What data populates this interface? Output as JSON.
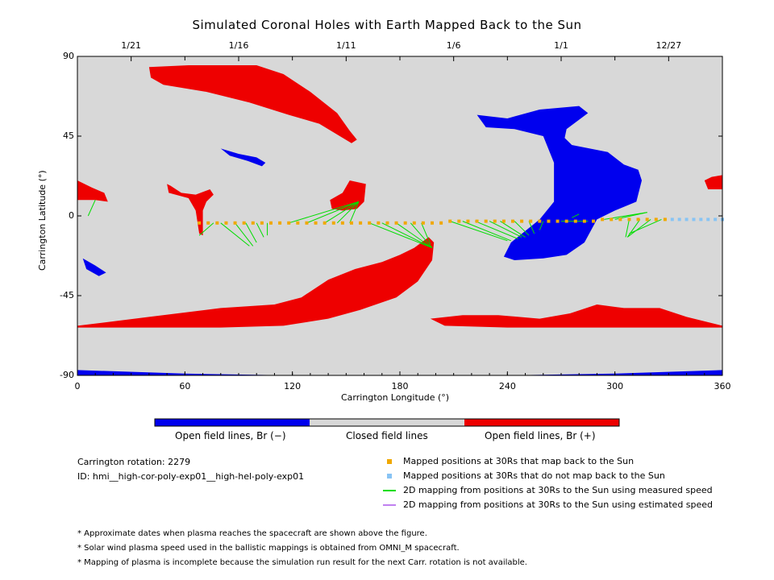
{
  "title": "Simulated Coronal Holes with Earth Mapped Back to the Sun",
  "info": {
    "rotation": "Carrington rotation: 2279",
    "id": "ID: hmi__high-cor-poly-exp01__high-hel-poly-exp01"
  },
  "colorbar": {
    "labels": [
      "Open field lines, Br (−)",
      "Closed field lines",
      "Open field lines, Br (+)"
    ],
    "colors": [
      "#0000ee",
      "#d8d8d8",
      "#ee0000"
    ]
  },
  "legend": [
    {
      "label": "Mapped positions at 30Rs that map back to the Sun",
      "marker": "square",
      "color": "#f0a800"
    },
    {
      "label": "Mapped positions at 30Rs that do not map back to the Sun",
      "marker": "square",
      "color": "#88c4f4"
    },
    {
      "label": "2D mapping from positions at 30Rs to the Sun using measured speed",
      "marker": "line",
      "color": "#00dd00"
    },
    {
      "label": "2D mapping from positions at 30Rs to the Sun using estimated speed",
      "marker": "line",
      "color": "#c080f0"
    }
  ],
  "notes": [
    "* Approximate dates when plasma reaches the spacecraft are shown above the figure.",
    "* Solar wind plasma speed used in the ballistic mappings is obtained from OMNI_M spacecraft.",
    "* Mapping of plasma is incomplete because the simulation run result for the next Carr. rotation is not available."
  ],
  "chart_data": {
    "type": "scatter",
    "title": "Simulated Coronal Holes with Earth Mapped Back to the Sun",
    "xlabel": "Carrington Longitude (°)",
    "ylabel": "Carrington Latitude (°)",
    "xlim": [
      0,
      360
    ],
    "ylim": [
      -90,
      90
    ],
    "xticks": [
      0,
      60,
      120,
      180,
      240,
      300,
      360
    ],
    "yticks": [
      -90,
      -45,
      0,
      45,
      90
    ],
    "top_axis_dates": [
      {
        "label": "1/21",
        "lon": 30
      },
      {
        "label": "1/16",
        "lon": 90
      },
      {
        "label": "1/11",
        "lon": 150
      },
      {
        "label": "1/6",
        "lon": 210
      },
      {
        "label": "1/1",
        "lon": 270
      },
      {
        "label": "12/27",
        "lon": 330
      }
    ],
    "background": "#d8d8d8",
    "regions": [
      {
        "name": "positive",
        "color": "#ee0000",
        "points": [
          [
            40,
            84
          ],
          [
            62,
            85
          ],
          [
            100,
            85
          ],
          [
            115,
            80
          ],
          [
            130,
            70
          ],
          [
            145,
            58
          ],
          [
            152,
            48
          ],
          [
            156,
            43
          ],
          [
            153,
            41
          ],
          [
            135,
            52
          ],
          [
            118,
            57
          ],
          [
            96,
            64
          ],
          [
            72,
            70
          ],
          [
            48,
            74
          ],
          [
            41,
            78
          ]
        ]
      },
      {
        "name": "negative",
        "color": "#0000ee",
        "points": [
          [
            223,
            57
          ],
          [
            240,
            55
          ],
          [
            258,
            60
          ],
          [
            280,
            62
          ],
          [
            285,
            58
          ],
          [
            273,
            49
          ],
          [
            272,
            44
          ],
          [
            276,
            40
          ],
          [
            296,
            36
          ],
          [
            305,
            29
          ],
          [
            313,
            26
          ],
          [
            315,
            20
          ],
          [
            312,
            8
          ],
          [
            300,
            3
          ],
          [
            290,
            -2
          ],
          [
            283,
            -15
          ],
          [
            273,
            -22
          ],
          [
            260,
            -24
          ],
          [
            244,
            -25
          ],
          [
            238,
            -23
          ],
          [
            242,
            -15
          ],
          [
            258,
            -2
          ],
          [
            266,
            8
          ],
          [
            266,
            30
          ],
          [
            260,
            45
          ],
          [
            244,
            49
          ],
          [
            228,
            50
          ]
        ]
      },
      {
        "name": "negative",
        "color": "#0000ee",
        "points": [
          [
            80,
            38
          ],
          [
            90,
            35
          ],
          [
            100,
            33
          ],
          [
            105,
            30
          ],
          [
            103,
            28
          ],
          [
            95,
            31
          ],
          [
            85,
            34
          ]
        ]
      },
      {
        "name": "negative",
        "color": "#0000ee",
        "points": [
          [
            3,
            -24
          ],
          [
            10,
            -28
          ],
          [
            16,
            -32
          ],
          [
            12,
            -34
          ],
          [
            5,
            -30
          ]
        ]
      },
      {
        "name": "positive",
        "color": "#ee0000",
        "points": [
          [
            0,
            20
          ],
          [
            8,
            16
          ],
          [
            15,
            13
          ],
          [
            17,
            8
          ],
          [
            10,
            9
          ],
          [
            0,
            9
          ]
        ]
      },
      {
        "name": "positive",
        "color": "#ee0000",
        "points": [
          [
            51,
            13
          ],
          [
            62,
            10
          ],
          [
            66,
            3
          ],
          [
            68,
            -10
          ],
          [
            70,
            -11
          ],
          [
            70,
            3
          ],
          [
            72,
            8
          ],
          [
            76,
            12
          ],
          [
            74,
            15
          ],
          [
            66,
            12
          ],
          [
            58,
            13
          ],
          [
            52,
            17
          ],
          [
            50,
            18
          ]
        ]
      },
      {
        "name": "positive",
        "color": "#ee0000",
        "points": [
          [
            141,
            9
          ],
          [
            148,
            13
          ],
          [
            152,
            20
          ],
          [
            161,
            18
          ],
          [
            160,
            8
          ],
          [
            156,
            4
          ],
          [
            148,
            3
          ],
          [
            142,
            4
          ]
        ]
      },
      {
        "name": "positive",
        "color": "#ee0000",
        "points": [
          [
            350,
            20
          ],
          [
            354,
            22
          ],
          [
            360,
            23
          ],
          [
            360,
            15
          ],
          [
            352,
            15
          ]
        ]
      },
      {
        "name": "positive",
        "color": "#ee0000",
        "points": [
          [
            0,
            -62
          ],
          [
            40,
            -57
          ],
          [
            80,
            -52
          ],
          [
            110,
            -50
          ],
          [
            125,
            -46
          ],
          [
            140,
            -36
          ],
          [
            155,
            -30
          ],
          [
            170,
            -26
          ],
          [
            180,
            -22
          ],
          [
            188,
            -18
          ],
          [
            196,
            -12
          ],
          [
            199,
            -15
          ],
          [
            198,
            -25
          ],
          [
            190,
            -37
          ],
          [
            178,
            -46
          ],
          [
            158,
            -53
          ],
          [
            140,
            -58
          ],
          [
            115,
            -62
          ],
          [
            80,
            -63
          ],
          [
            40,
            -63
          ],
          [
            0,
            -63
          ]
        ]
      },
      {
        "name": "positive",
        "color": "#ee0000",
        "points": [
          [
            197,
            -58
          ],
          [
            215,
            -56
          ],
          [
            235,
            -56
          ],
          [
            258,
            -58
          ],
          [
            275,
            -55
          ],
          [
            290,
            -50
          ],
          [
            305,
            -52
          ],
          [
            325,
            -52
          ],
          [
            340,
            -57
          ],
          [
            360,
            -62
          ],
          [
            360,
            -63
          ],
          [
            320,
            -63
          ],
          [
            280,
            -63
          ],
          [
            240,
            -63
          ],
          [
            205,
            -62
          ]
        ]
      },
      {
        "name": "negative",
        "color": "#0000ee",
        "points": [
          [
            0,
            -87
          ],
          [
            60,
            -89
          ],
          [
            120,
            -90
          ],
          [
            180,
            -90
          ],
          [
            240,
            -90
          ],
          [
            300,
            -89
          ],
          [
            360,
            -87
          ],
          [
            360,
            -90
          ],
          [
            0,
            -90
          ]
        ]
      }
    ],
    "mapped_points": {
      "map_back": [
        [
          68,
          -4
        ],
        [
          73,
          -4
        ],
        [
          78,
          -4
        ],
        [
          83,
          -4
        ],
        [
          88,
          -4
        ],
        [
          93,
          -4
        ],
        [
          98,
          -4
        ],
        [
          103,
          -4
        ],
        [
          108,
          -4
        ],
        [
          113,
          -4
        ],
        [
          118,
          -4
        ],
        [
          123,
          -4
        ],
        [
          128,
          -4
        ],
        [
          133,
          -4
        ],
        [
          138,
          -4
        ],
        [
          143,
          -4
        ],
        [
          148,
          -4
        ],
        [
          153,
          -4
        ],
        [
          158,
          -4
        ],
        [
          163,
          -4
        ],
        [
          168,
          -4
        ],
        [
          173,
          -4
        ],
        [
          178,
          -4
        ],
        [
          183,
          -4
        ],
        [
          188,
          -4
        ],
        [
          193,
          -4
        ],
        [
          198,
          -4
        ],
        [
          203,
          -4
        ],
        [
          208,
          -3
        ],
        [
          213,
          -3
        ],
        [
          218,
          -3
        ],
        [
          223,
          -3
        ],
        [
          228,
          -3
        ],
        [
          233,
          -3
        ],
        [
          238,
          -3
        ],
        [
          243,
          -3
        ],
        [
          248,
          -3
        ],
        [
          253,
          -3
        ],
        [
          258,
          -3
        ],
        [
          263,
          -3
        ],
        [
          268,
          -3
        ],
        [
          273,
          -3
        ],
        [
          278,
          -3
        ],
        [
          283,
          -3
        ],
        [
          288,
          -3
        ],
        [
          293,
          -2
        ],
        [
          298,
          -2
        ],
        [
          303,
          -2
        ],
        [
          308,
          -2
        ],
        [
          313,
          -2
        ],
        [
          318,
          -2
        ],
        [
          323,
          -2
        ],
        [
          328,
          -2
        ]
      ],
      "no_map": [
        [
          332,
          -2
        ],
        [
          336,
          -2
        ],
        [
          340,
          -2
        ],
        [
          344,
          -2
        ],
        [
          348,
          -2
        ],
        [
          352,
          -2
        ],
        [
          356,
          -2
        ],
        [
          360,
          -2
        ]
      ],
      "measured_lines": [
        [
          [
            10,
            9
          ],
          [
            6,
            0
          ]
        ],
        [
          [
            76,
            -4
          ],
          [
            68,
            -11
          ]
        ],
        [
          [
            80,
            -4
          ],
          [
            96,
            -17
          ]
        ],
        [
          [
            88,
            -4
          ],
          [
            98,
            -17
          ]
        ],
        [
          [
            94,
            -4
          ],
          [
            100,
            -15
          ]
        ],
        [
          [
            100,
            -4
          ],
          [
            104,
            -12
          ]
        ],
        [
          [
            106,
            -4
          ],
          [
            106,
            -11
          ]
        ],
        [
          [
            118,
            -4
          ],
          [
            157,
            8
          ]
        ],
        [
          [
            128,
            -4
          ],
          [
            157,
            8
          ]
        ],
        [
          [
            138,
            -4
          ],
          [
            157,
            8
          ]
        ],
        [
          [
            145,
            -4
          ],
          [
            157,
            8
          ]
        ],
        [
          [
            152,
            -4
          ],
          [
            157,
            8
          ]
        ],
        [
          [
            163,
            -4
          ],
          [
            198,
            -18
          ]
        ],
        [
          [
            170,
            -4
          ],
          [
            198,
            -18
          ]
        ],
        [
          [
            178,
            -4
          ],
          [
            198,
            -18
          ]
        ],
        [
          [
            186,
            -4
          ],
          [
            198,
            -18
          ]
        ],
        [
          [
            192,
            -4
          ],
          [
            197,
            -16
          ]
        ],
        [
          [
            208,
            -3
          ],
          [
            240,
            -14
          ]
        ],
        [
          [
            215,
            -3
          ],
          [
            242,
            -14
          ]
        ],
        [
          [
            222,
            -3
          ],
          [
            246,
            -13
          ]
        ],
        [
          [
            230,
            -3
          ],
          [
            248,
            -12
          ]
        ],
        [
          [
            236,
            -3
          ],
          [
            250,
            -12
          ]
        ],
        [
          [
            244,
            -3
          ],
          [
            252,
            -11
          ]
        ],
        [
          [
            252,
            -3
          ],
          [
            255,
            -10
          ]
        ],
        [
          [
            260,
            -3
          ],
          [
            258,
            -8
          ]
        ],
        [
          [
            270,
            -3
          ],
          [
            285,
            -3
          ]
        ],
        [
          [
            280,
            1
          ],
          [
            276,
            -1
          ]
        ],
        [
          [
            294,
            -2
          ],
          [
            318,
            2
          ]
        ],
        [
          [
            300,
            -2
          ],
          [
            318,
            2
          ]
        ],
        [
          [
            308,
            -2
          ],
          [
            306,
            -12
          ]
        ],
        [
          [
            314,
            -2
          ],
          [
            307,
            -12
          ]
        ],
        [
          [
            320,
            -2
          ],
          [
            307,
            -12
          ]
        ],
        [
          [
            326,
            -2
          ],
          [
            308,
            -10
          ]
        ]
      ],
      "estimated_lines": []
    }
  }
}
